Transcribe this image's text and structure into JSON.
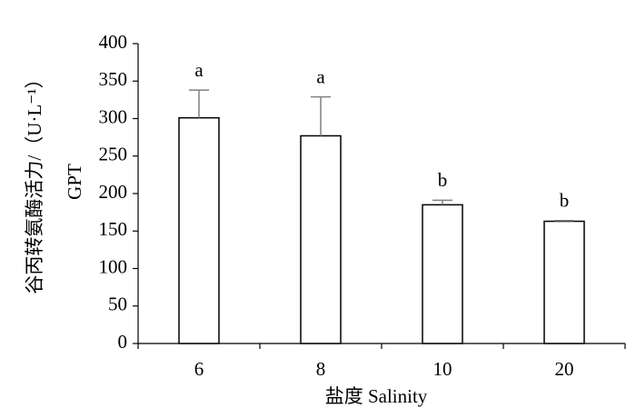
{
  "chart_data": {
    "type": "bar",
    "categories": [
      "6",
      "8",
      "10",
      "20"
    ],
    "values": [
      301,
      277,
      185,
      163
    ],
    "errors": [
      37,
      52,
      6,
      1
    ],
    "annotations": [
      "a",
      "a",
      "b",
      "b"
    ],
    "ylabel": [
      "谷丙转氨酶活力/（U·L⁻¹）",
      "GPT"
    ],
    "xlabel": "盐度 Salinity",
    "color": "#ffffff",
    "edge_color": "#000000",
    "error_color": "#808080",
    "ylim": [
      0,
      400
    ],
    "yticks": [
      0,
      50,
      100,
      150,
      200,
      250,
      300,
      350,
      400
    ],
    "grid": false
  }
}
